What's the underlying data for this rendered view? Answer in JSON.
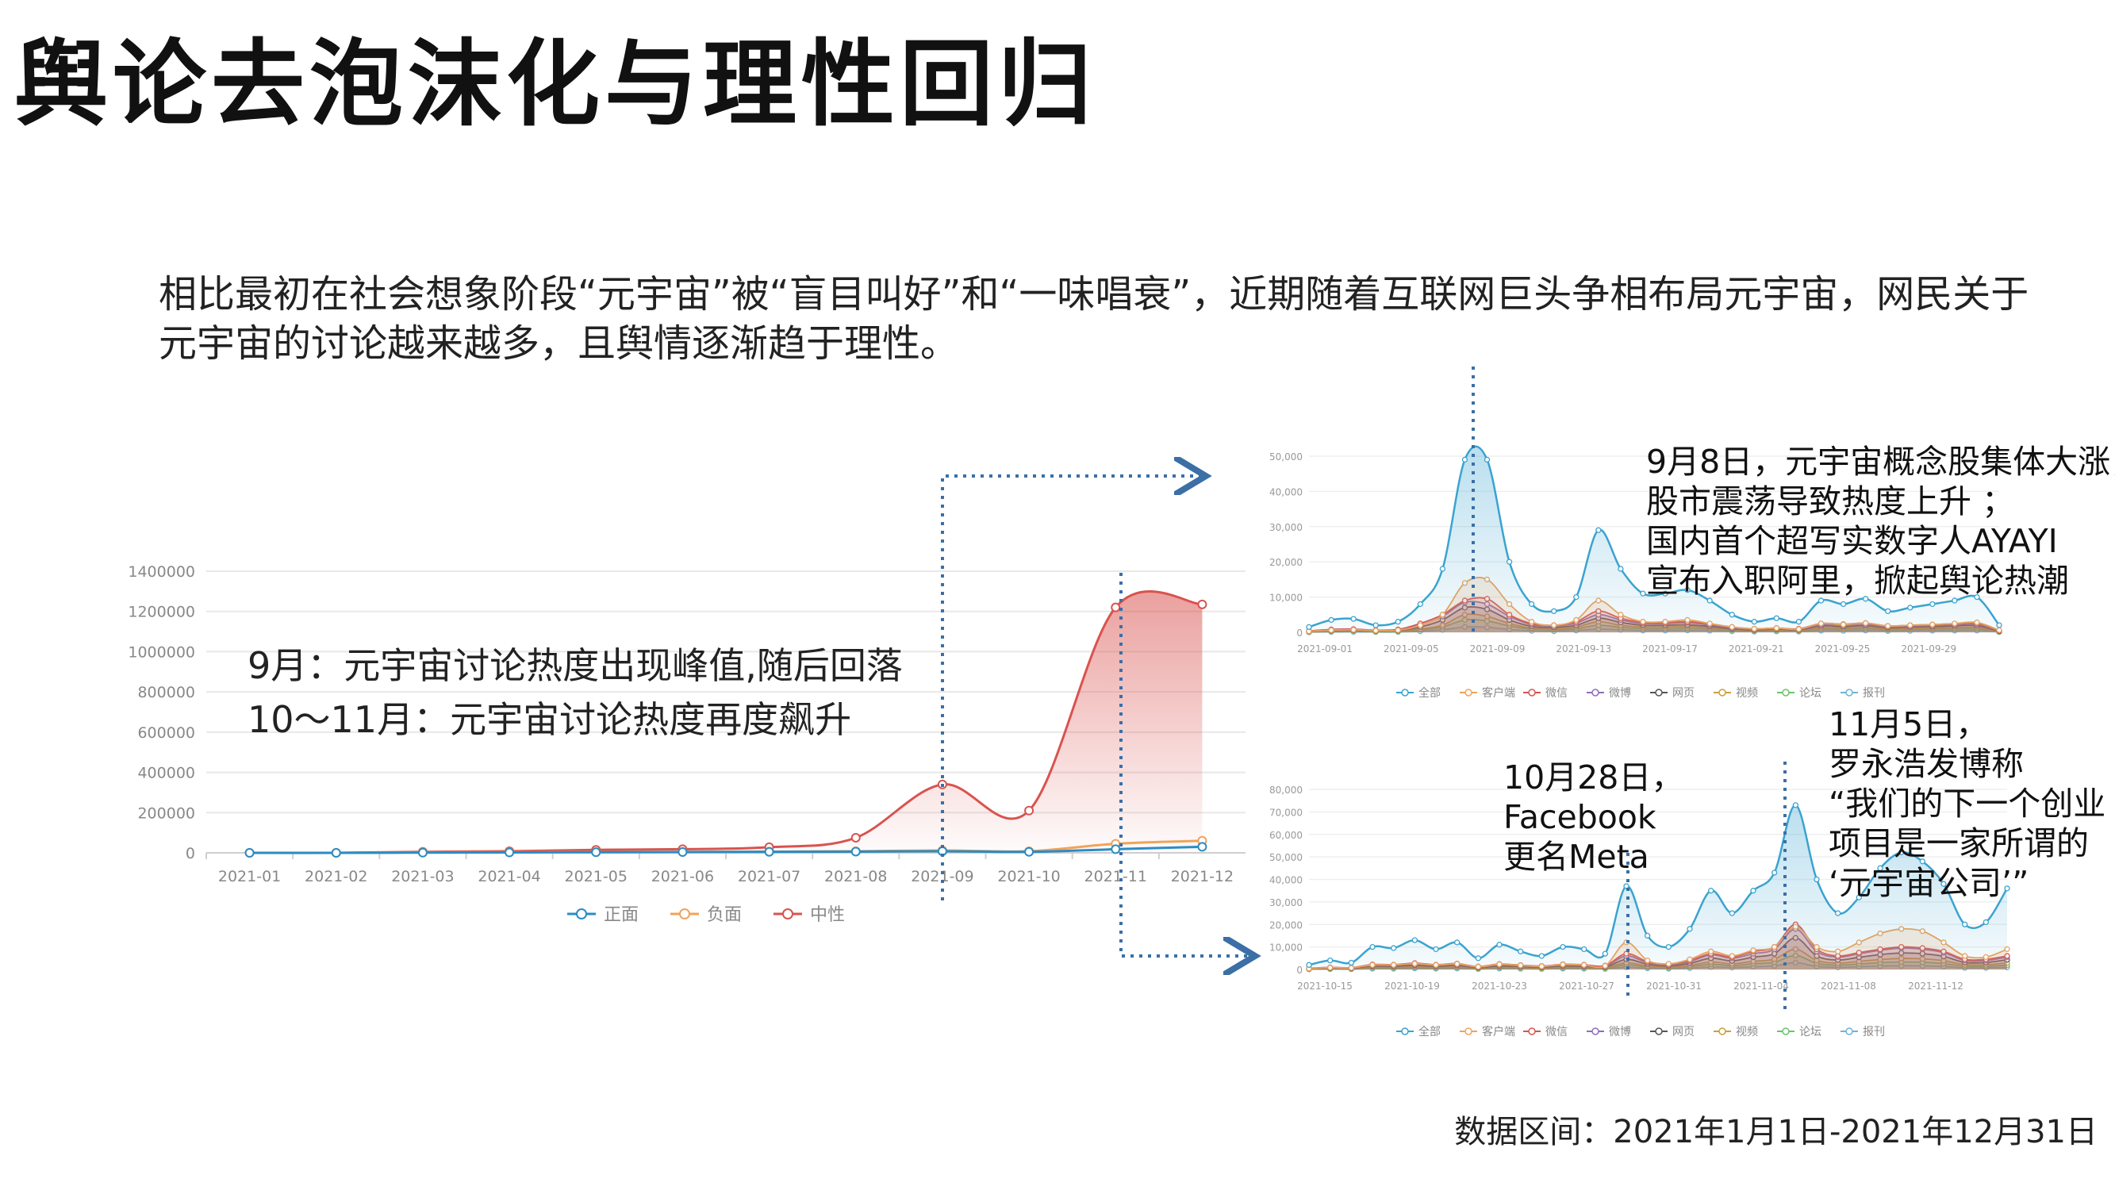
{
  "title": "舆论去泡沫化与理性回归",
  "intro": "相比最初在社会想象阶段“元宇宙”被“盲目叫好”和“一味唱衰”，近期随着互联网巨头争相布局元宇宙，网民关于元宇宙的讨论越来越多，且舆情逐渐趋于理性。",
  "annotations": {
    "main_1": "9月：元宇宙讨论热度出现峰值,随后回落",
    "main_2": "10～11月：元宇宙讨论热度再度飙升",
    "sep_note": [
      "9月8日，元宇宙概念股集体大涨，",
      "股市震荡导致热度上升 ；",
      "国内首个超写实数字人AYAYI",
      "宣布入职阿里，掀起舆论热潮"
    ],
    "oct_note_1": [
      "10月28日，",
      "Facebook",
      "更名Meta"
    ],
    "oct_note_2": [
      "11月5日，",
      "罗永浩发博称",
      "“我们的下一个创业",
      "项目是一家所谓的",
      "‘元宇宙公司’”"
    ]
  },
  "footer": "数据区间：2021年1月1日-2021年12月31日",
  "colors": {
    "zhengmian": "#2b8cc4",
    "fumian": "#f0a35a",
    "zhongxing": "#d9534f",
    "arrow": "#3b6fa5",
    "quanbu": "#3aa3d0"
  },
  "chart_data": [
    {
      "type": "line",
      "categories": [
        "2021-01",
        "2021-02",
        "2021-03",
        "2021-04",
        "2021-05",
        "2021-06",
        "2021-07",
        "2021-08",
        "2021-09",
        "2021-10",
        "2021-11",
        "2021-12"
      ],
      "series": [
        {
          "name": "正面",
          "values": [
            0,
            0,
            1000,
            2000,
            3000,
            4000,
            5000,
            6000,
            8000,
            5000,
            18000,
            30000
          ]
        },
        {
          "name": "负面",
          "values": [
            0,
            0,
            2000,
            3000,
            4000,
            5000,
            6000,
            8000,
            12000,
            8000,
            45000,
            60000
          ]
        },
        {
          "name": "中性",
          "values": [
            0,
            0,
            5000,
            8000,
            15000,
            18000,
            28000,
            75000,
            340000,
            210000,
            1220000,
            1235000
          ]
        }
      ],
      "ylim": [
        0,
        1400000
      ],
      "yticks": [
        "0",
        "200000",
        "400000",
        "600000",
        "800000",
        "1000000",
        "1200000",
        "1400000"
      ],
      "grid": true,
      "legend": "bottom"
    },
    {
      "type": "area",
      "x_ticks": [
        "2021-09-01",
        "2021-09-05",
        "2021-09-09",
        "2021-09-13",
        "2021-09-17",
        "2021-09-21",
        "2021-09-25",
        "2021-09-29"
      ],
      "yticks": [
        "0",
        "10,000",
        "20,000",
        "30,000",
        "40,000",
        "50,000"
      ],
      "ylim": [
        0,
        50000
      ],
      "legend_items": [
        "全部",
        "客户端",
        "微信",
        "微博",
        "网页",
        "视频",
        "论坛",
        "报刊"
      ],
      "series": [
        {
          "name": "全部",
          "values": [
            1500,
            3500,
            3800,
            2000,
            3000,
            8000,
            18000,
            49000,
            49000,
            20000,
            8000,
            6000,
            10000,
            29000,
            18000,
            11000,
            11000,
            12000,
            9000,
            5000,
            3000,
            4000,
            3000,
            9000,
            8000,
            9500,
            6000,
            7000,
            8000,
            9000,
            10000,
            2000
          ]
        },
        {
          "name": "客户端",
          "values": [
            300,
            600,
            700,
            500,
            600,
            2000,
            5000,
            14000,
            15000,
            8000,
            3000,
            2000,
            3500,
            9000,
            5000,
            3000,
            3000,
            3500,
            2500,
            1500,
            1000,
            1200,
            900,
            2500,
            2200,
            2600,
            1800,
            2000,
            2200,
            2500,
            2800,
            600
          ]
        },
        {
          "name": "微信",
          "values": [
            400,
            800,
            900,
            600,
            800,
            2500,
            5000,
            9000,
            9500,
            5000,
            2500,
            2000,
            3000,
            6000,
            4000,
            2800,
            2800,
            3000,
            2400,
            1500,
            1000,
            1200,
            1000,
            2500,
            2300,
            2600,
            1800,
            2000,
            2200,
            2400,
            2600,
            500
          ]
        },
        {
          "name": "微博",
          "values": [
            300,
            700,
            800,
            500,
            700,
            2000,
            4500,
            8500,
            8000,
            4500,
            2200,
            1800,
            2600,
            5000,
            3500,
            2500,
            2500,
            2700,
            2100,
            1300,
            900,
            1100,
            900,
            2200,
            2000,
            2300,
            1600,
            1800,
            2000,
            2200,
            2300,
            400
          ]
        },
        {
          "name": "网页",
          "values": [
            200,
            500,
            600,
            400,
            500,
            1500,
            3500,
            7000,
            6500,
            3500,
            1700,
            1400,
            2000,
            4000,
            2800,
            2000,
            2000,
            2100,
            1700,
            1000,
            700,
            900,
            700,
            1800,
            1600,
            1900,
            1300,
            1500,
            1600,
            1800,
            1900,
            300
          ]
        },
        {
          "name": "视频",
          "values": [
            100,
            300,
            350,
            250,
            300,
            900,
            2000,
            5000,
            4500,
            2500,
            1200,
            1000,
            1500,
            3000,
            2000,
            1500,
            1500,
            1600,
            1300,
            800,
            500,
            700,
            500,
            1300,
            1200,
            1400,
            1000,
            1100,
            1200,
            1300,
            1400,
            200
          ]
        },
        {
          "name": "论坛",
          "values": [
            100,
            200,
            250,
            150,
            200,
            700,
            1500,
            3500,
            3200,
            1800,
            900,
            700,
            1000,
            2000,
            1400,
            1000,
            1000,
            1100,
            900,
            600,
            400,
            500,
            400,
            900,
            800,
            1000,
            700,
            800,
            900,
            950,
            1000,
            150
          ]
        },
        {
          "name": "报刊",
          "values": [
            50,
            100,
            120,
            80,
            100,
            300,
            700,
            1500,
            1400,
            800,
            400,
            300,
            500,
            900,
            700,
            500,
            500,
            550,
            450,
            300,
            200,
            250,
            200,
            450,
            400,
            500,
            350,
            400,
            450,
            480,
            500,
            80
          ]
        }
      ]
    },
    {
      "type": "area",
      "x_ticks": [
        "2021-10-15",
        "2021-10-19",
        "2021-10-23",
        "2021-10-27",
        "2021-10-31",
        "2021-11-04",
        "2021-11-08",
        "2021-11-12"
      ],
      "yticks": [
        "0",
        "10,000",
        "20,000",
        "30,000",
        "40,000",
        "50,000",
        "60,000",
        "70,000",
        "80,000"
      ],
      "ylim": [
        0,
        80000
      ],
      "legend_items": [
        "全部",
        "客户端",
        "微信",
        "微博",
        "网页",
        "视频",
        "论坛",
        "报刊"
      ],
      "series": [
        {
          "name": "全部",
          "values": [
            2000,
            4000,
            3000,
            10000,
            9500,
            13000,
            9000,
            12000,
            5000,
            11000,
            8000,
            6000,
            10000,
            9000,
            7000,
            37000,
            15000,
            10000,
            18000,
            35000,
            25000,
            35000,
            43000,
            73000,
            40000,
            25000,
            32000,
            45000,
            52000,
            48000,
            38000,
            20000,
            21000,
            36000
          ]
        },
        {
          "name": "客户端",
          "values": [
            400,
            800,
            700,
            2000,
            2000,
            2600,
            2000,
            2500,
            1200,
            2300,
            1800,
            1400,
            2200,
            2000,
            1600,
            12000,
            4000,
            2500,
            4500,
            8000,
            6000,
            8500,
            10000,
            19000,
            10000,
            8000,
            12000,
            16000,
            18000,
            17000,
            12000,
            6000,
            5500,
            9000
          ]
        },
        {
          "name": "微信",
          "values": [
            500,
            900,
            800,
            2200,
            2100,
            2800,
            2100,
            2600,
            1300,
            2400,
            1900,
            1500,
            2300,
            2100,
            1700,
            7000,
            3500,
            2400,
            4000,
            7000,
            5500,
            8000,
            10000,
            20000,
            9000,
            6000,
            7500,
            9000,
            10000,
            9500,
            8000,
            4500,
            4500,
            6000
          ]
        },
        {
          "name": "微博",
          "values": [
            400,
            800,
            700,
            2000,
            1900,
            2500,
            1900,
            2400,
            1100,
            2200,
            1700,
            1300,
            2100,
            1900,
            1500,
            6000,
            3000,
            2100,
            3500,
            6500,
            5000,
            7000,
            9000,
            18000,
            8000,
            5500,
            7000,
            8500,
            9500,
            9000,
            7500,
            4000,
            4000,
            5500
          ]
        },
        {
          "name": "网页",
          "values": [
            300,
            600,
            500,
            1500,
            1400,
            1900,
            1400,
            1800,
            800,
            1600,
            1300,
            1000,
            1600,
            1400,
            1100,
            4500,
            2300,
            1600,
            2700,
            5000,
            3800,
            5500,
            7000,
            14000,
            6000,
            4200,
            5400,
            6600,
            7300,
            7000,
            5800,
            3100,
            3100,
            4300
          ]
        },
        {
          "name": "视频",
          "values": [
            200,
            400,
            350,
            1000,
            950,
            1300,
            950,
            1200,
            550,
            1100,
            850,
            650,
            1050,
            950,
            750,
            3000,
            1500,
            1050,
            1800,
            3300,
            2500,
            3600,
            4600,
            9000,
            4000,
            2800,
            3600,
            4400,
            4900,
            4700,
            3900,
            2100,
            2100,
            2900
          ]
        },
        {
          "name": "论坛",
          "values": [
            150,
            300,
            250,
            700,
            650,
            900,
            650,
            850,
            400,
            800,
            600,
            450,
            750,
            650,
            500,
            2100,
            1000,
            700,
            1200,
            2300,
            1700,
            2500,
            3200,
            6200,
            2700,
            1900,
            2400,
            3000,
            3300,
            3200,
            2600,
            1400,
            1400,
            1900
          ]
        },
        {
          "name": "报刊",
          "values": [
            80,
            150,
            120,
            350,
            330,
            450,
            330,
            420,
            200,
            400,
            300,
            220,
            370,
            330,
            250,
            1000,
            500,
            350,
            600,
            1100,
            850,
            1200,
            1600,
            3000,
            1350,
            950,
            1200,
            1500,
            1650,
            1600,
            1300,
            700,
            700,
            950
          ]
        }
      ]
    }
  ]
}
